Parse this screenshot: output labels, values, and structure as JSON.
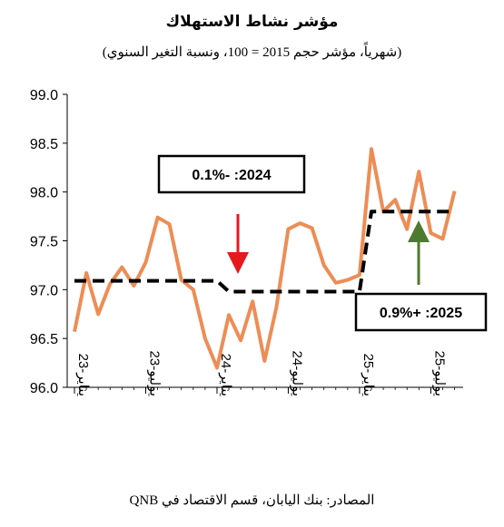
{
  "chart_data": {
    "type": "line",
    "title": "مؤشر نشاط الاستهلاك",
    "subtitle": "(شهرياً، مؤشر حجم 2015 = 100، ونسبة التغير السنوي)",
    "source": "المصادر: بنك اليابان، قسم الاقتصاد في QNB",
    "ylim": [
      96.0,
      99.0
    ],
    "yticks": [
      "96.0",
      "96.5",
      "97.0",
      "97.5",
      "98.0",
      "98.5",
      "99.0"
    ],
    "xticks": [
      "يناير-23",
      "يوليو-23",
      "يناير-24",
      "يوليو-24",
      "يناير-25",
      "يوليو-25"
    ],
    "grid": false,
    "series": [
      {
        "color": "#ED8D55",
        "style": "solid",
        "values": [
          96.57,
          97.17,
          96.75,
          97.06,
          97.23,
          97.04,
          97.28,
          97.74,
          97.67,
          97.1,
          97.0,
          96.5,
          96.2,
          96.74,
          96.48,
          96.88,
          96.27,
          96.82,
          97.62,
          97.68,
          97.63,
          97.25,
          97.07,
          97.1,
          97.15,
          98.44,
          97.8,
          97.92,
          97.62,
          98.21,
          97.58,
          97.52,
          98.01
        ]
      },
      {
        "color": "#000000",
        "style": "dashed",
        "values": [
          97.09,
          97.09,
          97.09,
          97.09,
          97.09,
          97.09,
          97.09,
          97.09,
          97.09,
          97.09,
          97.09,
          97.09,
          97.09,
          96.98,
          96.98,
          96.98,
          96.98,
          96.98,
          96.98,
          96.98,
          96.98,
          96.98,
          96.98,
          96.98,
          96.98,
          97.8,
          97.8,
          97.8,
          97.8,
          97.8,
          97.8,
          97.8,
          97.8
        ]
      }
    ],
    "annotations": [
      {
        "text": "2024: -0.1%",
        "arrow_color": "#E41A1C",
        "arrow_direction": "down"
      },
      {
        "text": "2025: +0.9%",
        "arrow_color": "#4E7A2E",
        "arrow_direction": "up"
      }
    ]
  }
}
